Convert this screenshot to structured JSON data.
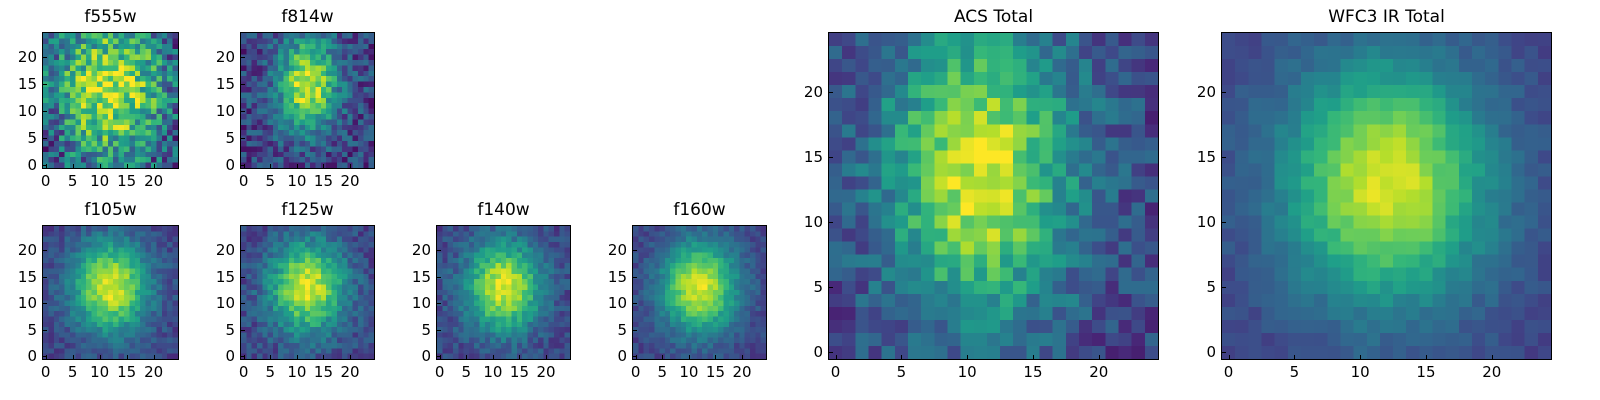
{
  "chart_data": [
    {
      "type": "heatmap",
      "title": "f555w",
      "grid_size": 25,
      "xlim": [
        0,
        24
      ],
      "ylim": [
        0,
        24
      ],
      "xticks": [
        "0",
        "5",
        "10",
        "15",
        "20"
      ],
      "yticks": [
        "0",
        "5",
        "10",
        "15",
        "20"
      ],
      "colormap": "viridis",
      "peak": [
        12,
        14
      ],
      "spread": [
        7,
        9
      ],
      "noise": 0.55
    },
    {
      "type": "heatmap",
      "title": "f814w",
      "grid_size": 25,
      "xlim": [
        0,
        24
      ],
      "ylim": [
        0,
        24
      ],
      "xticks": [
        "0",
        "5",
        "10",
        "15",
        "20"
      ],
      "yticks": [
        "0",
        "5",
        "10",
        "15",
        "20"
      ],
      "colormap": "viridis",
      "peak": [
        12,
        15
      ],
      "spread": [
        4,
        6
      ],
      "noise": 0.35
    },
    {
      "type": "heatmap",
      "title": "f105w",
      "grid_size": 25,
      "xlim": [
        0,
        24
      ],
      "ylim": [
        0,
        24
      ],
      "xticks": [
        "0",
        "5",
        "10",
        "15",
        "20"
      ],
      "yticks": [
        "0",
        "5",
        "10",
        "15",
        "20"
      ],
      "colormap": "viridis",
      "peak": [
        12,
        13
      ],
      "spread": [
        5,
        6
      ],
      "noise": 0.18
    },
    {
      "type": "heatmap",
      "title": "f125w",
      "grid_size": 25,
      "xlim": [
        0,
        24
      ],
      "ylim": [
        0,
        24
      ],
      "xticks": [
        "0",
        "5",
        "10",
        "15",
        "20"
      ],
      "yticks": [
        "0",
        "5",
        "10",
        "15",
        "20"
      ],
      "colormap": "viridis",
      "peak": [
        12,
        13
      ],
      "spread": [
        5,
        6
      ],
      "noise": 0.22
    },
    {
      "type": "heatmap",
      "title": "f140w",
      "grid_size": 25,
      "xlim": [
        0,
        24
      ],
      "ylim": [
        0,
        24
      ],
      "xticks": [
        "0",
        "5",
        "10",
        "15",
        "20"
      ],
      "yticks": [
        "0",
        "5",
        "10",
        "15",
        "20"
      ],
      "colormap": "viridis",
      "peak": [
        12,
        13
      ],
      "spread": [
        5,
        6
      ],
      "noise": 0.2
    },
    {
      "type": "heatmap",
      "title": "f160w",
      "grid_size": 25,
      "xlim": [
        0,
        24
      ],
      "ylim": [
        0,
        24
      ],
      "xticks": [
        "0",
        "5",
        "10",
        "15",
        "20"
      ],
      "yticks": [
        "0",
        "5",
        "10",
        "15",
        "20"
      ],
      "colormap": "viridis",
      "peak": [
        12,
        13
      ],
      "spread": [
        5,
        6
      ],
      "noise": 0.15
    },
    {
      "type": "heatmap",
      "title": "ACS Total",
      "grid_size": 25,
      "xlim": [
        0,
        24
      ],
      "ylim": [
        0,
        24
      ],
      "xticks": [
        "0",
        "5",
        "10",
        "15",
        "20"
      ],
      "yticks": [
        "0",
        "5",
        "10",
        "15",
        "20"
      ],
      "colormap": "viridis",
      "peak": [
        11,
        14
      ],
      "spread": [
        5,
        8
      ],
      "noise": 0.28
    },
    {
      "type": "heatmap",
      "title": "WFC3 IR Total",
      "grid_size": 25,
      "xlim": [
        0,
        24
      ],
      "ylim": [
        0,
        24
      ],
      "xticks": [
        "0",
        "5",
        "10",
        "15",
        "20"
      ],
      "yticks": [
        "0",
        "5",
        "10",
        "15",
        "20"
      ],
      "colormap": "viridis",
      "peak": [
        12,
        13
      ],
      "spread": [
        5.5,
        6.5
      ],
      "noise": 0.1
    }
  ]
}
